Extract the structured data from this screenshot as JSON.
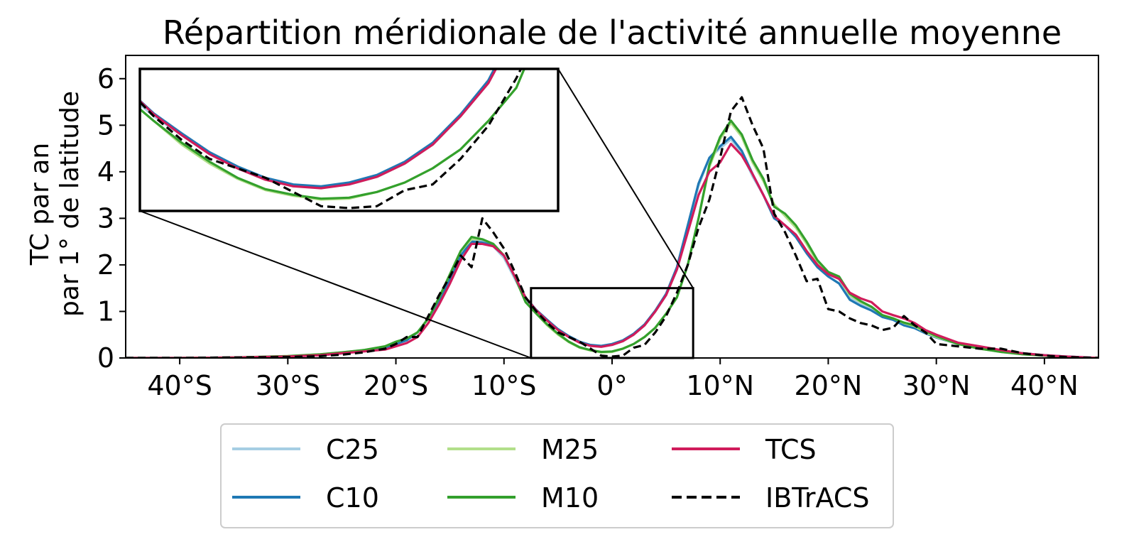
{
  "chart_data": {
    "type": "line",
    "title": "Répartition méridionale de l'activité annuelle moyenne",
    "ylabel_line1": "TC par an",
    "ylabel_line2": "par 1° de latitude",
    "xlim": [
      -45,
      45
    ],
    "ylim": [
      0,
      6.5
    ],
    "xticks": [
      {
        "value": -40,
        "label": "40°S"
      },
      {
        "value": -30,
        "label": "30°S"
      },
      {
        "value": -20,
        "label": "20°S"
      },
      {
        "value": -10,
        "label": "10°S"
      },
      {
        "value": 0,
        "label": "0°"
      },
      {
        "value": 10,
        "label": "10°N"
      },
      {
        "value": 20,
        "label": "20°N"
      },
      {
        "value": 30,
        "label": "30°N"
      },
      {
        "value": 40,
        "label": "40°N"
      }
    ],
    "yticks": [
      {
        "value": 0,
        "label": "0"
      },
      {
        "value": 1,
        "label": "1"
      },
      {
        "value": 2,
        "label": "2"
      },
      {
        "value": 3,
        "label": "3"
      },
      {
        "value": 4,
        "label": "4"
      },
      {
        "value": 5,
        "label": "5"
      },
      {
        "value": 6,
        "label": "6"
      }
    ],
    "inset": {
      "xlim": [
        -7.5,
        7.5
      ],
      "ylim": [
        0,
        1.5
      ]
    },
    "legend_placement": "below",
    "series": [
      {
        "name": "C25",
        "color": "#a6cee3",
        "dash": "solid",
        "x": [
          -45,
          -40,
          -35,
          -30,
          -27,
          -25,
          -23,
          -21,
          -20,
          -19,
          -18,
          -17,
          -16,
          -15,
          -14,
          -13,
          -12,
          -11,
          -10,
          -9,
          -8,
          -7,
          -6,
          -5,
          -4,
          -3,
          -2,
          -1,
          0,
          1,
          2,
          3,
          4,
          5,
          6,
          7,
          8,
          9,
          10,
          11,
          12,
          13,
          14,
          15,
          16,
          17,
          18,
          19,
          20,
          21,
          22,
          23,
          24,
          25,
          26,
          27,
          28,
          29,
          30,
          32,
          34,
          36,
          38,
          40,
          42,
          45
        ],
        "y": [
          0,
          0,
          0.01,
          0.03,
          0.06,
          0.1,
          0.15,
          0.2,
          0.3,
          0.38,
          0.55,
          0.85,
          1.25,
          1.7,
          2.2,
          2.55,
          2.5,
          2.4,
          2.15,
          1.7,
          1.25,
          1.0,
          0.8,
          0.6,
          0.45,
          0.33,
          0.27,
          0.25,
          0.28,
          0.36,
          0.5,
          0.7,
          1.0,
          1.35,
          1.9,
          2.8,
          3.7,
          4.3,
          4.5,
          4.7,
          4.4,
          3.9,
          3.5,
          3.0,
          2.85,
          2.6,
          2.25,
          1.95,
          1.75,
          1.6,
          1.3,
          1.15,
          1.05,
          0.9,
          0.85,
          0.72,
          0.65,
          0.55,
          0.45,
          0.3,
          0.22,
          0.15,
          0.1,
          0.06,
          0.03,
          0
        ]
      },
      {
        "name": "C10",
        "color": "#1f78b4",
        "dash": "solid",
        "x": [
          -45,
          -40,
          -35,
          -30,
          -27,
          -25,
          -23,
          -21,
          -20,
          -19,
          -18,
          -17,
          -16,
          -15,
          -14,
          -13,
          -12,
          -11,
          -10,
          -9,
          -8,
          -7,
          -6,
          -5,
          -4,
          -3,
          -2,
          -1,
          0,
          1,
          2,
          3,
          4,
          5,
          6,
          7,
          8,
          9,
          10,
          11,
          12,
          13,
          14,
          15,
          16,
          17,
          18,
          19,
          20,
          21,
          22,
          23,
          24,
          25,
          26,
          27,
          28,
          29,
          30,
          32,
          34,
          36,
          38,
          40,
          42,
          45
        ],
        "y": [
          0,
          0,
          0.01,
          0.03,
          0.06,
          0.1,
          0.15,
          0.2,
          0.3,
          0.38,
          0.55,
          0.85,
          1.25,
          1.7,
          2.2,
          2.5,
          2.48,
          2.42,
          2.2,
          1.75,
          1.3,
          1.03,
          0.82,
          0.62,
          0.47,
          0.35,
          0.28,
          0.26,
          0.3,
          0.38,
          0.52,
          0.72,
          1.02,
          1.38,
          1.95,
          2.85,
          3.75,
          4.3,
          4.55,
          4.75,
          4.45,
          3.95,
          3.5,
          3.0,
          2.85,
          2.6,
          2.25,
          1.95,
          1.75,
          1.6,
          1.25,
          1.12,
          1.02,
          0.88,
          0.82,
          0.7,
          0.64,
          0.53,
          0.44,
          0.3,
          0.22,
          0.15,
          0.1,
          0.06,
          0.03,
          0
        ]
      },
      {
        "name": "M25",
        "color": "#b2df8a",
        "dash": "solid",
        "x": [
          -45,
          -40,
          -35,
          -30,
          -27,
          -25,
          -23,
          -21,
          -20,
          -19,
          -18,
          -17,
          -16,
          -15,
          -14,
          -13,
          -12,
          -11,
          -10,
          -9,
          -8,
          -7,
          -6,
          -5,
          -4,
          -3,
          -2,
          -1,
          0,
          1,
          2,
          3,
          4,
          5,
          6,
          7,
          8,
          9,
          10,
          11,
          12,
          13,
          14,
          15,
          16,
          17,
          18,
          19,
          20,
          21,
          22,
          23,
          24,
          25,
          26,
          27,
          28,
          29,
          30,
          32,
          34,
          36,
          38,
          40,
          42,
          45
        ],
        "y": [
          0,
          0,
          0.01,
          0.04,
          0.08,
          0.12,
          0.17,
          0.25,
          0.35,
          0.42,
          0.55,
          0.85,
          1.3,
          1.8,
          2.3,
          2.55,
          2.55,
          2.45,
          2.2,
          1.75,
          1.2,
          0.95,
          0.7,
          0.5,
          0.34,
          0.22,
          0.16,
          0.12,
          0.13,
          0.2,
          0.3,
          0.45,
          0.65,
          0.95,
          1.3,
          2.0,
          3.0,
          4.1,
          4.7,
          5.05,
          4.75,
          4.2,
          3.8,
          3.3,
          3.05,
          2.8,
          2.45,
          2.05,
          1.85,
          1.7,
          1.35,
          1.2,
          1.1,
          0.92,
          0.85,
          0.75,
          0.68,
          0.55,
          0.45,
          0.3,
          0.2,
          0.13,
          0.08,
          0.05,
          0.02,
          0
        ]
      },
      {
        "name": "M10",
        "color": "#33a02c",
        "dash": "solid",
        "x": [
          -45,
          -40,
          -35,
          -30,
          -27,
          -25,
          -23,
          -21,
          -20,
          -19,
          -18,
          -17,
          -16,
          -15,
          -14,
          -13,
          -12,
          -11,
          -10,
          -9,
          -8,
          -7,
          -6,
          -5,
          -4,
          -3,
          -2,
          -1,
          0,
          1,
          2,
          3,
          4,
          5,
          6,
          7,
          8,
          9,
          10,
          11,
          12,
          13,
          14,
          15,
          16,
          17,
          18,
          19,
          20,
          21,
          22,
          23,
          24,
          25,
          26,
          27,
          28,
          29,
          30,
          32,
          34,
          36,
          38,
          40,
          42,
          45
        ],
        "y": [
          0,
          0,
          0.01,
          0.04,
          0.08,
          0.12,
          0.17,
          0.25,
          0.35,
          0.42,
          0.55,
          0.85,
          1.3,
          1.8,
          2.3,
          2.6,
          2.55,
          2.45,
          2.2,
          1.75,
          1.2,
          0.95,
          0.72,
          0.52,
          0.35,
          0.23,
          0.17,
          0.13,
          0.14,
          0.2,
          0.3,
          0.45,
          0.65,
          0.95,
          1.3,
          2.0,
          3.0,
          4.15,
          4.75,
          5.1,
          4.8,
          4.25,
          3.85,
          3.25,
          3.1,
          2.85,
          2.5,
          2.1,
          1.85,
          1.75,
          1.38,
          1.22,
          1.1,
          0.92,
          0.85,
          0.76,
          0.7,
          0.58,
          0.47,
          0.3,
          0.2,
          0.13,
          0.08,
          0.05,
          0.02,
          0
        ]
      },
      {
        "name": "TCS",
        "color": "#d01c5b",
        "dash": "solid",
        "x": [
          -45,
          -40,
          -35,
          -30,
          -27,
          -25,
          -23,
          -21,
          -20,
          -19,
          -18,
          -17,
          -16,
          -15,
          -14,
          -13,
          -12,
          -11,
          -10,
          -9,
          -8,
          -7,
          -6,
          -5,
          -4,
          -3,
          -2,
          -1,
          0,
          1,
          2,
          3,
          4,
          5,
          6,
          7,
          8,
          9,
          10,
          11,
          12,
          13,
          14,
          15,
          16,
          17,
          18,
          19,
          20,
          21,
          22,
          23,
          24,
          25,
          26,
          27,
          28,
          29,
          30,
          32,
          34,
          36,
          38,
          40,
          42,
          45
        ],
        "y": [
          0,
          0,
          0.01,
          0.03,
          0.06,
          0.1,
          0.14,
          0.18,
          0.25,
          0.32,
          0.45,
          0.75,
          1.15,
          1.6,
          2.1,
          2.45,
          2.45,
          2.4,
          2.2,
          1.75,
          1.3,
          1.02,
          0.8,
          0.6,
          0.45,
          0.33,
          0.26,
          0.24,
          0.28,
          0.36,
          0.5,
          0.7,
          1.0,
          1.35,
          1.9,
          2.7,
          3.5,
          4.0,
          4.2,
          4.6,
          4.35,
          3.95,
          3.5,
          3.05,
          2.85,
          2.65,
          2.3,
          2.0,
          1.8,
          1.7,
          1.4,
          1.28,
          1.2,
          1.0,
          0.92,
          0.85,
          0.75,
          0.6,
          0.5,
          0.33,
          0.25,
          0.17,
          0.1,
          0.06,
          0.03,
          0
        ]
      },
      {
        "name": "IBTrACS",
        "color": "#000000",
        "dash": "dashed",
        "x": [
          -45,
          -40,
          -35,
          -30,
          -27,
          -25,
          -23,
          -21,
          -20,
          -19,
          -18,
          -17,
          -16,
          -15,
          -14,
          -13,
          -12,
          -11,
          -10,
          -9,
          -8,
          -7,
          -6,
          -5,
          -4,
          -3,
          -2,
          -1,
          0,
          1,
          2,
          3,
          4,
          5,
          6,
          7,
          8,
          9,
          10,
          11,
          12,
          13,
          14,
          15,
          16,
          17,
          18,
          19,
          20,
          21,
          22,
          23,
          24,
          25,
          26,
          27,
          28,
          29,
          30,
          32,
          34,
          36,
          38,
          40,
          42,
          45
        ],
        "y": [
          0,
          0,
          0.01,
          0.02,
          0.04,
          0.07,
          0.12,
          0.2,
          0.3,
          0.45,
          0.45,
          0.9,
          1.35,
          1.75,
          2.2,
          1.95,
          3.0,
          2.7,
          2.35,
          1.85,
          1.3,
          1.0,
          0.75,
          0.55,
          0.45,
          0.35,
          0.2,
          0.05,
          0.03,
          0.05,
          0.22,
          0.28,
          0.55,
          0.9,
          1.4,
          2.0,
          2.8,
          3.4,
          4.3,
          5.3,
          5.6,
          5.0,
          4.5,
          3.1,
          2.7,
          2.2,
          1.65,
          1.7,
          1.05,
          1.0,
          0.85,
          0.75,
          0.7,
          0.6,
          0.65,
          0.9,
          0.7,
          0.55,
          0.3,
          0.25,
          0.2,
          0.2,
          0.1,
          0.05,
          0.02,
          0
        ]
      }
    ]
  }
}
